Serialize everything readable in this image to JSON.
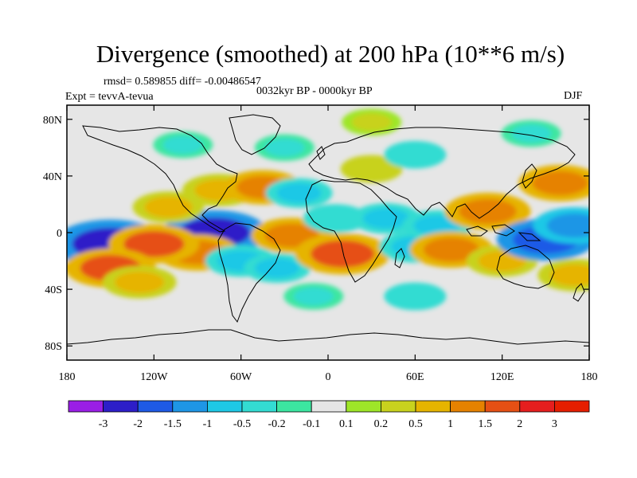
{
  "header": {
    "title": "Divergence (smoothed) at 200 hPa (10**6 m/s)",
    "stats": "rmsd= 0.589855 diff= -0.00486547",
    "period": "0032kyr BP - 0000kyr BP",
    "experiment": "Expt = tevvA-tevua",
    "season": "DJF"
  },
  "chart_data": {
    "type": "heatmap",
    "title": "Divergence (smoothed) at 200 hPa (10**6 m/s)",
    "xlim": [
      -180,
      180
    ],
    "ylim": [
      -90,
      90
    ],
    "x_ticks": [
      {
        "value": -180,
        "label": "180"
      },
      {
        "value": -120,
        "label": "120W"
      },
      {
        "value": -60,
        "label": "60W"
      },
      {
        "value": 0,
        "label": "0"
      },
      {
        "value": 60,
        "label": "60E"
      },
      {
        "value": 120,
        "label": "120E"
      },
      {
        "value": 180,
        "label": "180"
      }
    ],
    "y_ticks": [
      {
        "value": 80,
        "label": "80N"
      },
      {
        "value": 40,
        "label": "40N"
      },
      {
        "value": 0,
        "label": "0"
      },
      {
        "value": -40,
        "label": "40S"
      },
      {
        "value": -80,
        "label": "80S"
      }
    ],
    "colorbar": {
      "levels": [
        "-3",
        "-2",
        "-1.5",
        "-1",
        "-0.5",
        "-0.2",
        "-0.1",
        "0.1",
        "0.2",
        "0.5",
        "1",
        "1.5",
        "2",
        "3"
      ],
      "colors": [
        "#9a1ee6",
        "#2d1ec8",
        "#1e5ae6",
        "#1e96e6",
        "#1ec8e6",
        "#33dcd2",
        "#3ce6a0",
        "#e6e6e6",
        "#9ee628",
        "#c8d21e",
        "#e6b400",
        "#e68200",
        "#e65014",
        "#e61e1e",
        "#e61e00"
      ]
    },
    "anomaly_regions": [
      {
        "lon": -150,
        "lat": -8,
        "value": -2.6
      },
      {
        "lon": -78,
        "lat": 0,
        "value": -2.2
      },
      {
        "lon": -110,
        "lat": 18,
        "value": 0.8
      },
      {
        "lon": -90,
        "lat": -14,
        "value": 1.3
      },
      {
        "lon": -120,
        "lat": -8,
        "value": 1.6
      },
      {
        "lon": -150,
        "lat": -25,
        "value": 1.6
      },
      {
        "lon": -130,
        "lat": -35,
        "value": 0.9
      },
      {
        "lon": -75,
        "lat": 30,
        "value": 0.9
      },
      {
        "lon": -45,
        "lat": 32,
        "value": 1.1
      },
      {
        "lon": -20,
        "lat": 28,
        "value": -0.6
      },
      {
        "lon": -60,
        "lat": -20,
        "value": -0.8
      },
      {
        "lon": -25,
        "lat": -2,
        "value": 1.2
      },
      {
        "lon": -35,
        "lat": -25,
        "value": -0.6
      },
      {
        "lon": 10,
        "lat": -15,
        "value": 1.8
      },
      {
        "lon": 5,
        "lat": 10,
        "value": -0.5
      },
      {
        "lon": 40,
        "lat": 10,
        "value": -0.7
      },
      {
        "lon": 60,
        "lat": -10,
        "value": -0.8
      },
      {
        "lon": 75,
        "lat": 5,
        "value": -0.7
      },
      {
        "lon": 30,
        "lat": 45,
        "value": 0.4
      },
      {
        "lon": 85,
        "lat": -12,
        "value": 1.3
      },
      {
        "lon": 110,
        "lat": 15,
        "value": 1.4
      },
      {
        "lon": 120,
        "lat": -20,
        "value": 0.8
      },
      {
        "lon": 150,
        "lat": -5,
        "value": -1.9
      },
      {
        "lon": 170,
        "lat": 5,
        "value": -1.3
      },
      {
        "lon": 160,
        "lat": 35,
        "value": 1.3
      },
      {
        "lon": 170,
        "lat": -30,
        "value": 0.9
      },
      {
        "lon": -100,
        "lat": 62,
        "value": -0.3
      },
      {
        "lon": -30,
        "lat": 60,
        "value": -0.3
      },
      {
        "lon": 60,
        "lat": 55,
        "value": -0.4
      },
      {
        "lon": 140,
        "lat": 70,
        "value": -0.3
      },
      {
        "lon": 30,
        "lat": 78,
        "value": 0.3
      },
      {
        "lon": -10,
        "lat": -45,
        "value": -0.3
      },
      {
        "lon": 60,
        "lat": -45,
        "value": -0.4
      }
    ]
  }
}
